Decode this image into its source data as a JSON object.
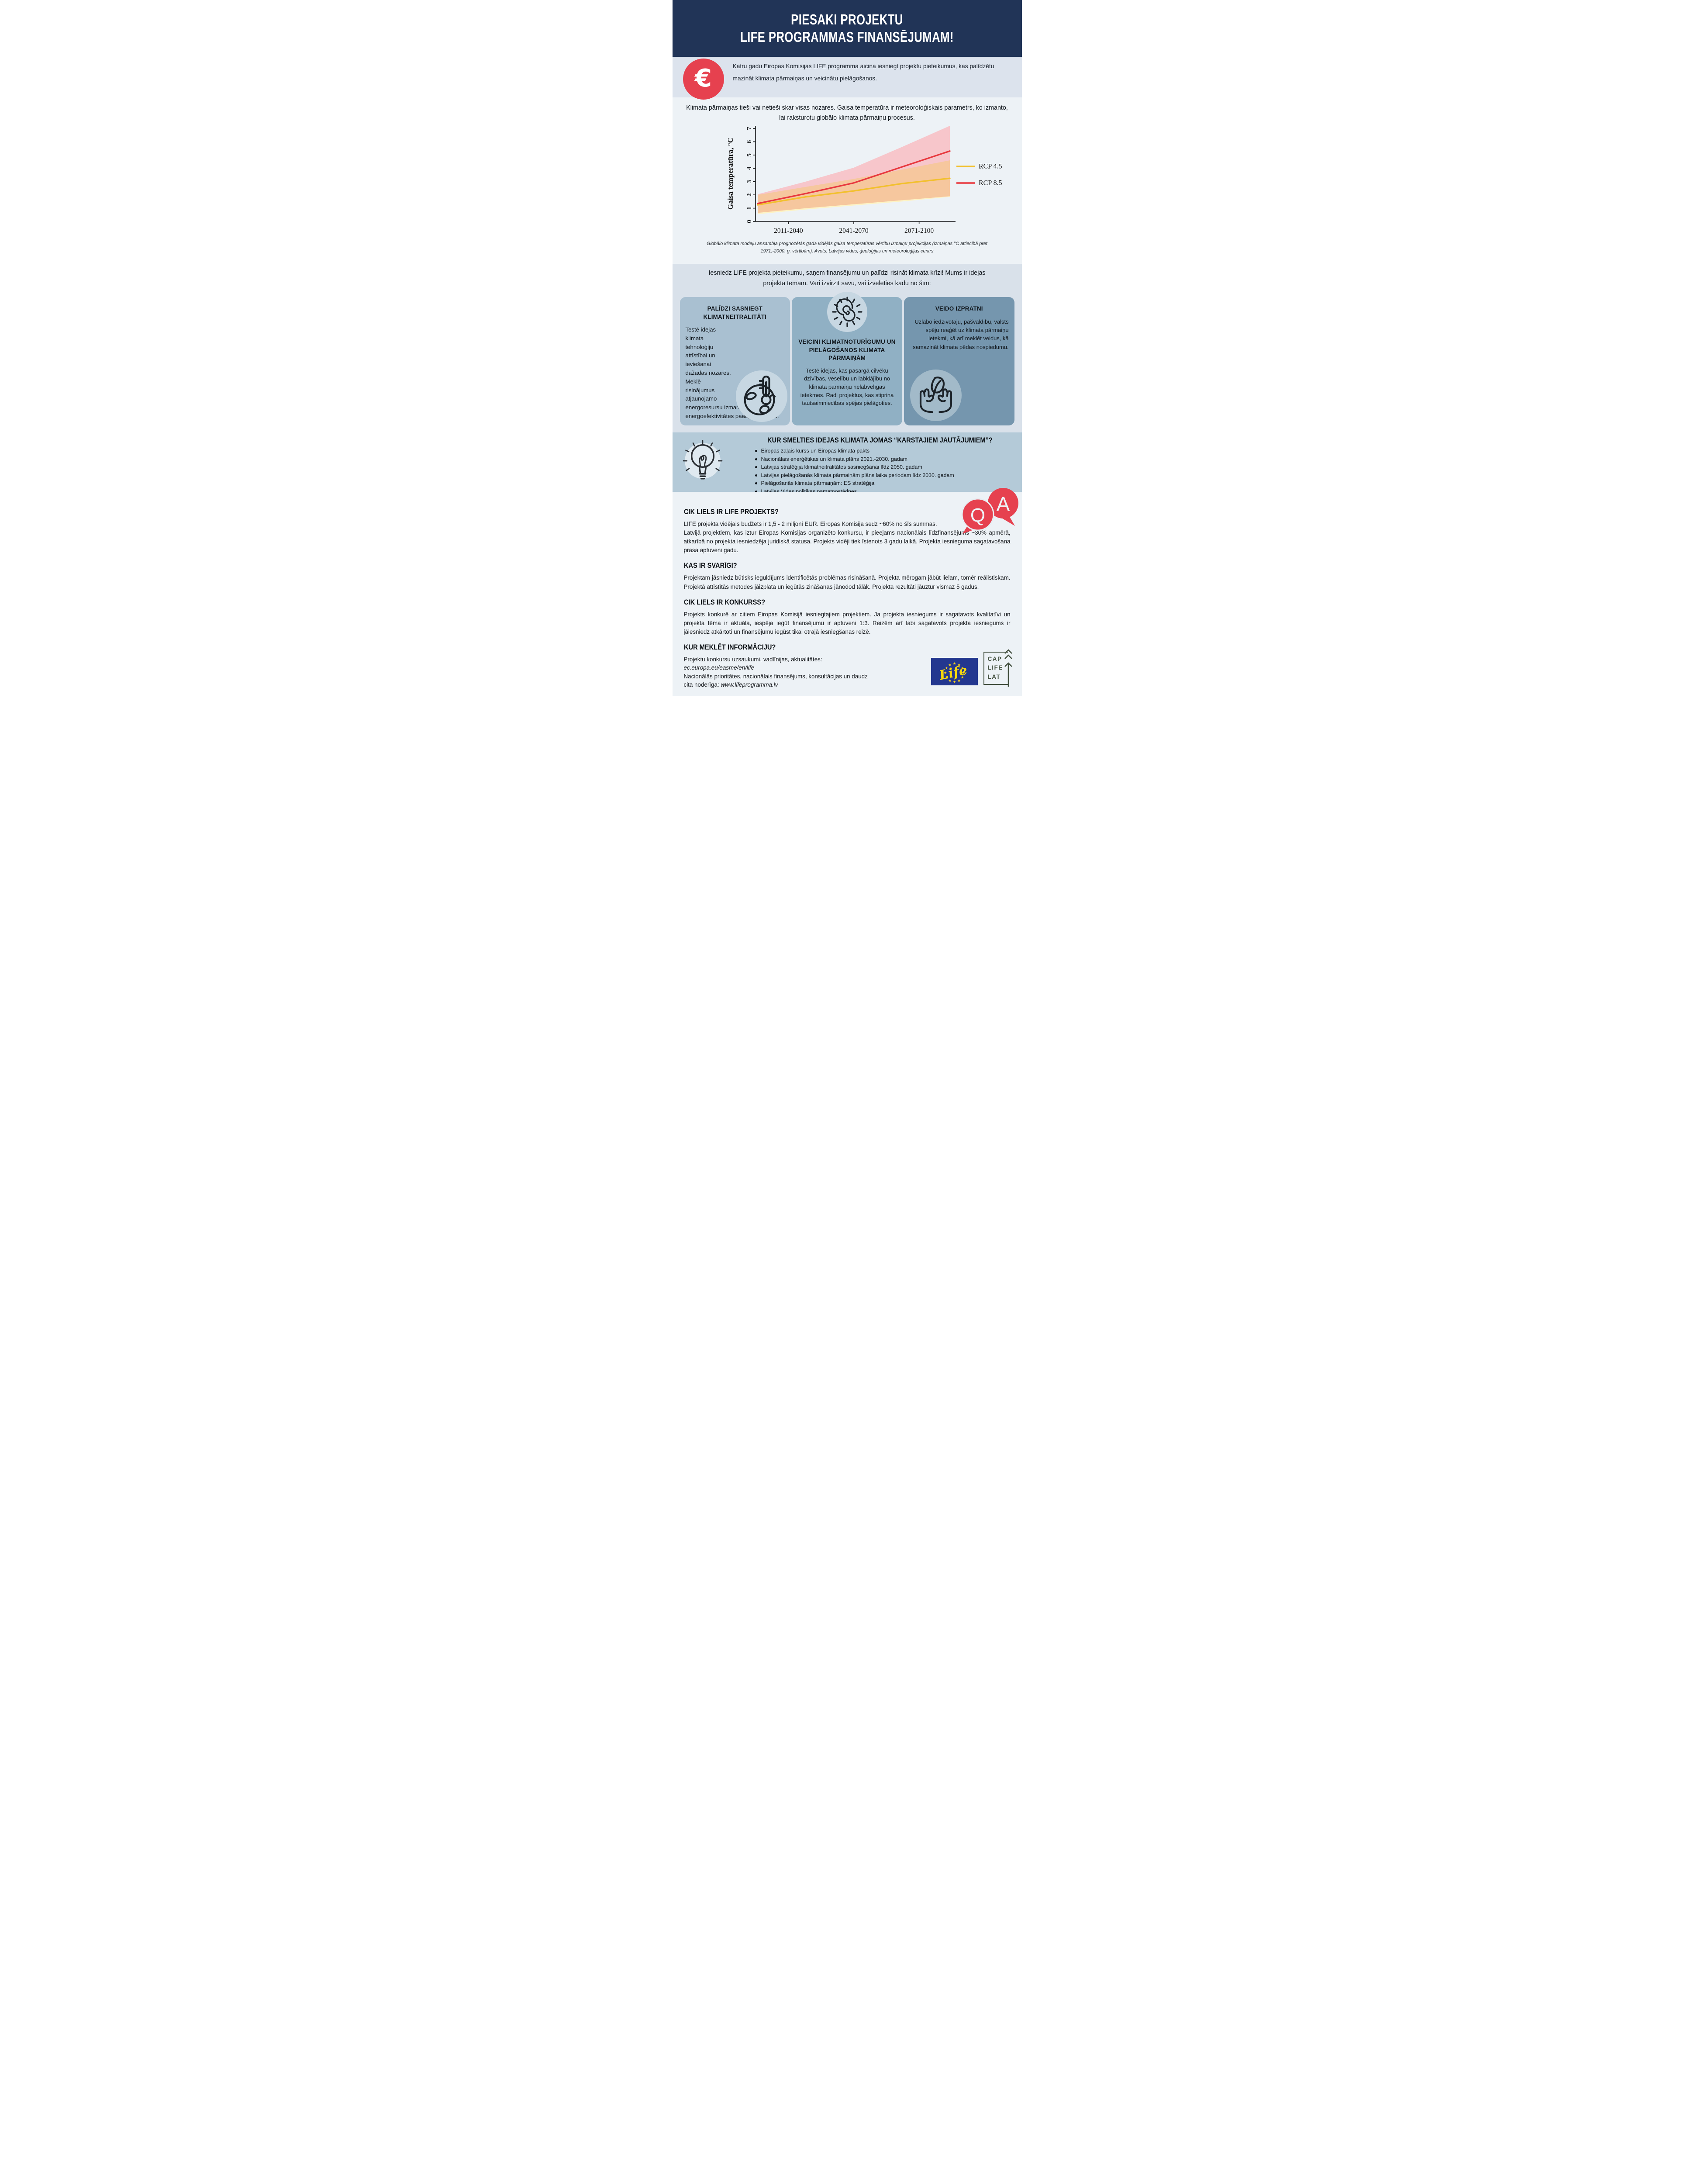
{
  "header": {
    "title_line1": "PIESAKI PROJEKTU",
    "title_line2": "LIFE PROGRAMMAS FINANSĒJUMAM!"
  },
  "intro": {
    "euro_symbol": "€",
    "text": "Katru gadu Eiropas Komisijas LIFE programma aicina iesniegt projektu pieteikumus, kas palīdzētu mazināt klimata pārmaiņas un veicinātu pielāgošanos."
  },
  "climate_note": "Klimata pārmaiņas tieši vai netieši skar visas nozares. Gaisa temperatūra ir meteoroloģiskais parametrs, ko izmanto, lai raksturotu globālo klimata pārmaiņu procesus.",
  "chart_data": {
    "type": "line",
    "title": "",
    "xlabel": "",
    "ylabel": "Gaisa temperatūra, °C",
    "categories": [
      "2011-2040",
      "2041-2070",
      "2071-2100"
    ],
    "category_positions": [
      0.16,
      0.5,
      0.84
    ],
    "x_positions": [
      0,
      0.25,
      0.5,
      0.75,
      1
    ],
    "ylim": [
      0,
      7.2
    ],
    "yticks": [
      0,
      1,
      2,
      3,
      4,
      5,
      6,
      7
    ],
    "grid": false,
    "legend_position": "right",
    "series": [
      {
        "name": "RCP 4.5",
        "color": "#f2c02e",
        "band_color": "#fdf3c4",
        "values": [
          1.25,
          1.85,
          2.3,
          2.85,
          3.25
        ],
        "band": [
          [
            0.55,
            2.0
          ],
          [
            0.9,
            2.6
          ],
          [
            1.2,
            3.2
          ],
          [
            1.5,
            3.9
          ],
          [
            1.85,
            4.6
          ]
        ]
      },
      {
        "name": "RCP 8.5",
        "color": "#e8393f",
        "band_color": "#f7c6cb",
        "values": [
          1.35,
          2.1,
          2.9,
          4.1,
          5.3
        ],
        "band": [
          [
            0.65,
            2.05
          ],
          [
            1.0,
            3.0
          ],
          [
            1.3,
            4.05
          ],
          [
            1.6,
            5.6
          ],
          [
            1.9,
            7.2
          ]
        ]
      }
    ],
    "overlap_band_color": "#f6c79e"
  },
  "chart_caption": "Globālo klimata modeļu ansambļa prognozētās gada vidējās gaisa temperatūras vērtību izmaiņu projekcijas (izmaiņas °C attiecībā pret 1971.-2000. g. vērtībām). Avots: Latvijas vides, ģeoloģijas un meteoroloģijas centrs",
  "invite": "Iesniedz LIFE projekta pieteikumu, saņem finansējumu un palīdzi risināt klimata krīzi! Mums ir idejas projekta tēmām. Vari izvirzīt savu, vai izvēlēties kādu no šīm:",
  "cards": [
    {
      "title": "PALĪDZI SASNIEGT KLIMATNEITRALITĀTI",
      "body": "Testē idejas klimata tehnoloģiju attīstībai un ieviešanai dažādās nozarēs. Meklē risinājumus atjaunojamo energoresursu izmantošanai un energoefektivitātes paaugstināšanai.",
      "icon": "globe-thermometer-icon"
    },
    {
      "title": "VEICINI KLIMATNOTURĪGUMU UN PIELĀGOŠANOS KLIMATA PĀRMAIŅĀM",
      "body": "Testē idejas, kas pasargā cilvēku dzīvības, veselību un labklājību no klimata pārmaiņu nelabvēlīgās ietekmes. Radi projektus, kas stiprina tautsaimniecības spējas pielāgoties.",
      "icon": "sun-icon"
    },
    {
      "title": "VEIDO IZPRATNI",
      "body": "Uzlabo iedzīvotāju, pašvaldību, valsts spēju reaģēt uz klimata pārmaiņu ietekmi, kā arī meklēt veidus, kā samazināt klimata pēdas nospiedumu.",
      "icon": "hands-leaf-icon"
    }
  ],
  "ideas": {
    "title": "KUR SMELTIES IDEJAS KLIMATA JOMAS “KARSTAJIEM JAUTĀJUMIEM”?",
    "icon": "lightbulb-icon",
    "items": [
      "Eiropas zaļais kurss un Eiropas klimata pakts",
      "Nacionālais enerģētikas un klimata plāns 2021.-2030. gadam",
      "Latvijas stratēģija klimatneitralitātes sasniegšanai līdz 2050. gadam",
      "Latvijas pielāgošanās klimata pārmaiņām plāns laika periodam līdz 2030. gadam",
      "Pielāgošanās klimata pārmaiņām: ES stratēģija",
      "Latvijas Vides politikas pamatnostādnes"
    ]
  },
  "qa": {
    "q_label": "Q",
    "a_label": "A",
    "sections": [
      {
        "heading": "CIK LIELS IR LIFE PROJEKTS?",
        "body_line1": "LIFE projekta vidējais budžets ir 1,5 - 2 miljoni EUR. Eiropas Komisija sedz ~60% no šīs summas.",
        "body_rest": "Latvijā projektiem, kas iztur Eiropas Komisijas organizēto konkursu, ir pieejams nacionālais līdzfinansējums ~30% apmērā, atkarībā no projekta iesniedzēja juridiskā statusa. Projekts vidēji tiek īstenots 3 gadu laikā. Projekta iesnieguma sagatavošana prasa aptuveni gadu."
      },
      {
        "heading": "KAS IR SVARĪGI?",
        "body": "Projektam jāsniedz būtisks ieguldījums identificētās problēmas risināšanā. Projekta mērogam jābūt lielam, tomēr reālistiskam. Projektā attīstītās metodes jāizplata un iegūtās zināšanas jānodod tālāk. Projekta rezultāti jāuztur vismaz 5 gadus."
      },
      {
        "heading": "CIK LIELS IR KONKURSS?",
        "body": "Projekts konkurē ar citiem Eiropas Komisijā iesniegtajiem projektiem. Ja projekta iesniegums ir sagatavots kvalitatīvi un projekta tēma ir aktuāla, iespēja iegūt finansējumu ir aptuveni 1:3. Reizēm arī labi sagatavots projekta iesniegums ir jāiesniedz atkārtoti un finansējumu iegūst tikai otrajā iesniegšanas reizē."
      }
    ]
  },
  "info": {
    "heading": "KUR MEKLĒT INFORMĀCIJU?",
    "line1": "Projektu konkursu uzsaukumi, vadlīnijas, aktualitātes:",
    "link1": "ec.europa.eu/easme/en/life",
    "line2": "Nacionālās prioritātes, nacionālais finansējums, konsultācijas un daudz",
    "line3_prefix": "cita noderīga: ",
    "link2": "www.lifeprogramma.lv"
  },
  "footer_logos": {
    "life_label": "Life",
    "cap_lines": [
      "CAP",
      "LIFE",
      "LAT"
    ]
  },
  "colors": {
    "navy": "#213457",
    "accent_red": "#e6414f",
    "intro_bg": "#dce3ed",
    "main_bg": "#edf2f6",
    "strip_bg": "#d9e1ea",
    "card1_bg": "#a9c0d1",
    "card2_bg": "#90b0c4",
    "card3_bg": "#7596ae",
    "ideas_bg": "#b4cad8",
    "eu_blue": "#23378f",
    "eu_yellow": "#ffd617",
    "cap_green": "#43503f",
    "rcp45_color": "#f2c02e",
    "rcp85_color": "#e8393f"
  }
}
